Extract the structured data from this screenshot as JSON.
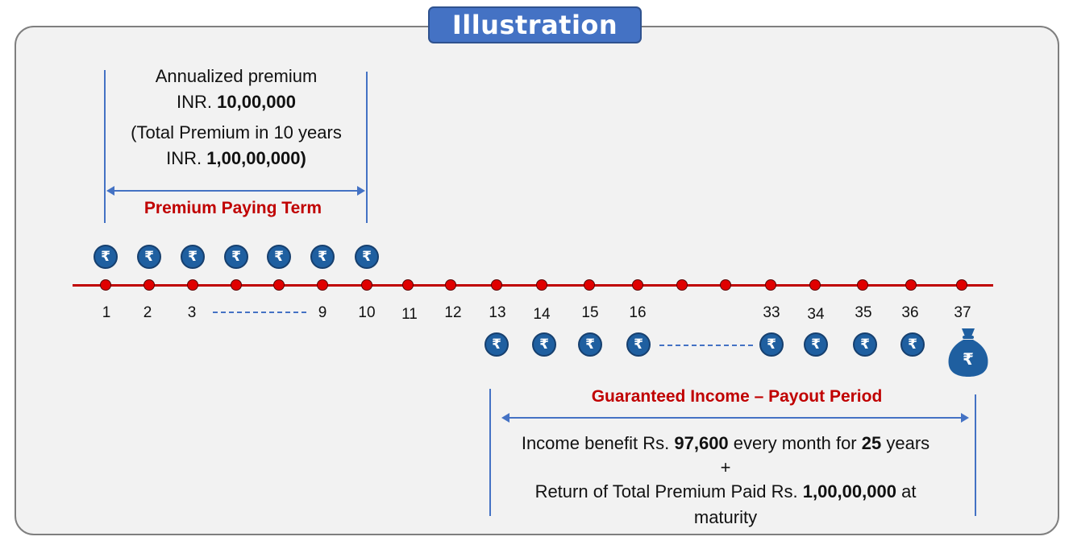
{
  "title": "Illustration",
  "premium": {
    "line1": "Annualized premium",
    "line2_prefix": "INR. ",
    "line2_amount": "10,00,000",
    "line3": "(Total Premium in 10 years",
    "line4_prefix": "INR. ",
    "line4_amount": "1,00,00,000)",
    "term_label": "Premium Paying Term"
  },
  "timeline": {
    "labels": [
      "1",
      "2",
      "3",
      "9",
      "10",
      "11",
      "12",
      "13",
      "14",
      "15",
      "16",
      "33",
      "34",
      "35",
      "36",
      "37"
    ],
    "currency_symbol": "₹"
  },
  "payout": {
    "title": "Guaranteed Income – Payout Period",
    "income_prefix": "Income benefit Rs. ",
    "income_amount": "97,600",
    "income_middle": " every month for ",
    "income_years": "25",
    "income_suffix": " years",
    "plus": "+",
    "return_prefix": "Return of Total Premium Paid Rs. ",
    "return_amount": "1,00,00,000",
    "return_suffix": " at",
    "return_line2": "maturity"
  },
  "colors": {
    "accent_blue": "#4472c4",
    "coin_blue": "#1f5fa0",
    "timeline_red": "#c00000",
    "panel_bg": "#f2f2f2"
  },
  "icons": [
    "rupee-coin-icon",
    "money-bag-icon"
  ]
}
